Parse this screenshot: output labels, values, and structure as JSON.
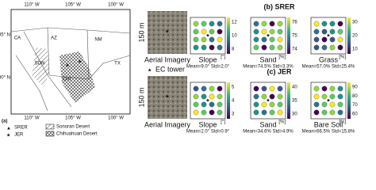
{
  "map": {
    "panel_label": "(a)",
    "top_lon": [
      "110° W",
      "105° W",
      "100° W"
    ],
    "bottom_lon": [
      "110° W",
      "105° W",
      "100° W"
    ],
    "lat": [
      "35° N",
      "30° N"
    ],
    "regions": [
      "CA",
      "AZ",
      "NM",
      "TX",
      "SON",
      "CHI"
    ],
    "legend": [
      "SRER",
      "JER",
      "Chihuahuan Desert",
      "Sonoran Desert"
    ]
  },
  "aerial": {
    "scale": "150 m",
    "label": "Aerial Imagery",
    "ec_tower": "EC tower"
  },
  "panels": [
    {
      "label": "(b) SRER",
      "maps": [
        {
          "title": "Slope",
          "unit": "[°]",
          "ticks": [
            "12",
            "10",
            "8"
          ],
          "stats": "Mean=9.0° Std=2.0°"
        },
        {
          "title": "Sand",
          "unit": "[%]",
          "ticks": [
            "76",
            "75",
            "74"
          ],
          "stats": "Mean=74.5% Std=3.3%"
        },
        {
          "title": "Grass",
          "unit": "[%]",
          "ticks": [
            "30",
            "20",
            "10"
          ],
          "stats": "Mean=57.0% Std=25.4%"
        }
      ]
    },
    {
      "label": "(c) JER",
      "maps": [
        {
          "title": "Slope",
          "unit": "[°]",
          "ticks": [
            "5",
            "4",
            "3"
          ],
          "stats": "Mean=2.0° Std=0.9°"
        },
        {
          "title": "Sand",
          "unit": "[%]",
          "ticks": [
            "40",
            "35",
            "30"
          ],
          "stats": "Mean=34.6% Std=4.9%"
        },
        {
          "title": "Bare Soil",
          "unit": "[%]",
          "ticks": [
            "90",
            "80",
            "70",
            "60"
          ],
          "stats": "Mean=66.5% Std=15.8%"
        }
      ]
    }
  ]
}
